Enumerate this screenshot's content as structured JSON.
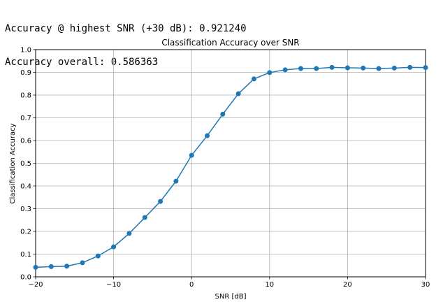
{
  "console": {
    "line1": "Accuracy @ highest SNR (+30 dB): 0.921240",
    "line2": "Accuracy overall: 0.586363"
  },
  "chart_data": {
    "type": "line",
    "title": "Classification Accuracy over SNR",
    "xlabel": "SNR [dB]",
    "ylabel": "Classification Accuracy",
    "xlim": [
      -20,
      30
    ],
    "ylim": [
      0.0,
      1.0
    ],
    "xticks": [
      -20,
      -10,
      0,
      10,
      20,
      30
    ],
    "yticks": [
      "0.0",
      "0.1",
      "0.2",
      "0.3",
      "0.4",
      "0.5",
      "0.6",
      "0.7",
      "0.8",
      "0.9",
      "1.0"
    ],
    "grid": true,
    "series": [
      {
        "color": "#1f77b4",
        "marker": "circle",
        "x": [
          -20,
          -18,
          -16,
          -14,
          -12,
          -10,
          -8,
          -6,
          -4,
          -2,
          0,
          2,
          4,
          6,
          8,
          10,
          12,
          14,
          16,
          18,
          20,
          22,
          24,
          26,
          28,
          30
        ],
        "y": [
          0.042,
          0.045,
          0.047,
          0.062,
          0.092,
          0.132,
          0.191,
          0.261,
          0.332,
          0.421,
          0.535,
          0.621,
          0.716,
          0.806,
          0.871,
          0.899,
          0.911,
          0.917,
          0.917,
          0.922,
          0.92,
          0.919,
          0.917,
          0.919,
          0.922,
          0.921
        ]
      }
    ]
  }
}
